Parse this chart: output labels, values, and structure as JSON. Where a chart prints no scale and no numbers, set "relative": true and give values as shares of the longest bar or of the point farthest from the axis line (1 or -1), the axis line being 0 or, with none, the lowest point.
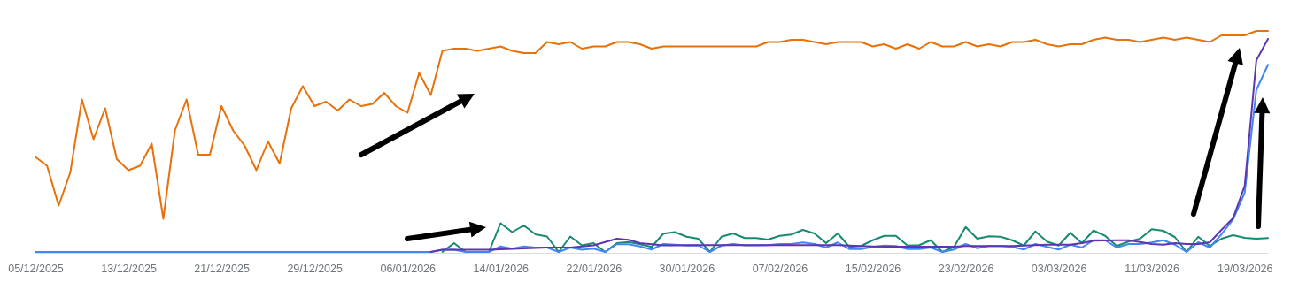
{
  "chart_data": {
    "type": "line",
    "relative": true,
    "grid": false,
    "marker": "none",
    "line_style": "solid",
    "x": [
      "2025-12-05",
      "2025-12-06",
      "2025-12-07",
      "2025-12-08",
      "2025-12-09",
      "2025-12-10",
      "2025-12-11",
      "2025-12-12",
      "2025-12-13",
      "2025-12-14",
      "2025-12-15",
      "2025-12-16",
      "2025-12-17",
      "2025-12-18",
      "2025-12-19",
      "2025-12-20",
      "2025-12-21",
      "2025-12-22",
      "2025-12-23",
      "2025-12-24",
      "2025-12-25",
      "2025-12-26",
      "2025-12-27",
      "2025-12-28",
      "2025-12-29",
      "2025-12-30",
      "2025-12-31",
      "2026-01-01",
      "2026-01-02",
      "2026-01-03",
      "2026-01-04",
      "2026-01-05",
      "2026-01-06",
      "2026-01-07",
      "2026-01-08",
      "2026-01-09",
      "2026-01-10",
      "2026-01-11",
      "2026-01-12",
      "2026-01-13",
      "2026-01-14",
      "2026-01-15",
      "2026-01-16",
      "2026-01-17",
      "2026-01-18",
      "2026-01-19",
      "2026-01-20",
      "2026-01-21",
      "2026-01-22",
      "2026-01-23",
      "2026-01-24",
      "2026-01-25",
      "2026-01-26",
      "2026-01-27",
      "2026-01-28",
      "2026-01-29",
      "2026-01-30",
      "2026-01-31",
      "2026-02-01",
      "2026-02-02",
      "2026-02-03",
      "2026-02-04",
      "2026-02-05",
      "2026-02-06",
      "2026-02-07",
      "2026-02-08",
      "2026-02-09",
      "2026-02-10",
      "2026-02-11",
      "2026-02-12",
      "2026-02-13",
      "2026-02-14",
      "2026-02-15",
      "2026-02-16",
      "2026-02-17",
      "2026-02-18",
      "2026-02-19",
      "2026-02-20",
      "2026-02-21",
      "2026-02-22",
      "2026-02-23",
      "2026-02-24",
      "2026-02-25",
      "2026-02-26",
      "2026-02-27",
      "2026-02-28",
      "2026-03-01",
      "2026-03-02",
      "2026-03-03",
      "2026-03-04",
      "2026-03-05",
      "2026-03-06",
      "2026-03-07",
      "2026-03-08",
      "2026-03-09",
      "2026-03-10",
      "2026-03-11",
      "2026-03-12",
      "2026-03-13",
      "2026-03-14",
      "2026-03-15",
      "2026-03-16",
      "2026-03-17",
      "2026-03-18",
      "2026-03-19",
      "2026-03-20",
      "2026-03-21"
    ],
    "xlim": [
      "2025-12-05",
      "2026-03-21"
    ],
    "xticks": [
      {
        "value": "2025-12-05",
        "label": "05/12/2025"
      },
      {
        "value": "2025-12-13",
        "label": "13/12/2025"
      },
      {
        "value": "2025-12-21",
        "label": "21/12/2025"
      },
      {
        "value": "2025-12-29",
        "label": "29/12/2025"
      },
      {
        "value": "2026-01-06",
        "label": "06/01/2026"
      },
      {
        "value": "2026-01-14",
        "label": "14/01/2026"
      },
      {
        "value": "2026-01-22",
        "label": "22/01/2026"
      },
      {
        "value": "2026-01-30",
        "label": "30/01/2026"
      },
      {
        "value": "2026-02-07",
        "label": "07/02/2026"
      },
      {
        "value": "2026-02-15",
        "label": "15/02/2026"
      },
      {
        "value": "2026-02-23",
        "label": "23/02/2026"
      },
      {
        "value": "2026-03-03",
        "label": "03/03/2026"
      },
      {
        "value": "2026-03-11",
        "label": "11/03/2026"
      },
      {
        "value": "2026-03-19",
        "label": "19/03/2026"
      }
    ],
    "series": [
      {
        "color": "#e8710a",
        "values": [
          0.43,
          0.39,
          0.21,
          0.36,
          0.69,
          0.51,
          0.65,
          0.42,
          0.37,
          0.39,
          0.49,
          0.15,
          0.55,
          0.69,
          0.44,
          0.44,
          0.66,
          0.55,
          0.48,
          0.37,
          0.5,
          0.4,
          0.65,
          0.75,
          0.66,
          0.68,
          0.64,
          0.69,
          0.66,
          0.67,
          0.72,
          0.66,
          0.63,
          0.81,
          0.71,
          0.91,
          0.92,
          0.92,
          0.91,
          0.92,
          0.93,
          0.91,
          0.9,
          0.9,
          0.95,
          0.94,
          0.95,
          0.92,
          0.93,
          0.93,
          0.95,
          0.95,
          0.94,
          0.92,
          0.93,
          0.93,
          0.93,
          0.93,
          0.93,
          0.93,
          0.93,
          0.93,
          0.93,
          0.95,
          0.95,
          0.96,
          0.96,
          0.95,
          0.94,
          0.95,
          0.95,
          0.95,
          0.93,
          0.94,
          0.92,
          0.94,
          0.92,
          0.95,
          0.93,
          0.93,
          0.95,
          0.93,
          0.94,
          0.93,
          0.95,
          0.95,
          0.96,
          0.94,
          0.93,
          0.94,
          0.94,
          0.96,
          0.97,
          0.96,
          0.96,
          0.95,
          0.96,
          0.97,
          0.96,
          0.97,
          0.96,
          0.95,
          0.98,
          0.98,
          0.98,
          1.0,
          1.0
        ]
      },
      {
        "color": "#188a72",
        "values": [
          null,
          null,
          null,
          null,
          null,
          null,
          null,
          null,
          null,
          null,
          null,
          null,
          null,
          null,
          null,
          null,
          null,
          null,
          null,
          null,
          null,
          null,
          null,
          null,
          null,
          null,
          null,
          null,
          null,
          null,
          null,
          null,
          null,
          null,
          null,
          0,
          0.04,
          0,
          0,
          0,
          0.13,
          0.09,
          0.12,
          0.08,
          0.07,
          0,
          0.07,
          0.03,
          0.04,
          0,
          0.04,
          0.045,
          0.035,
          0.023,
          0.083,
          0.09,
          0.069,
          0.06,
          0,
          0.069,
          0.084,
          0.063,
          0.063,
          0.056,
          0.073,
          0.079,
          0.1,
          0.084,
          0.04,
          0.084,
          0.023,
          0.027,
          0.053,
          0.073,
          0.073,
          0.029,
          0.031,
          0.053,
          0,
          0.023,
          0.113,
          0.06,
          0.071,
          0.069,
          0.053,
          0.029,
          0.093,
          0.047,
          0.029,
          0.087,
          0.04,
          0.097,
          0.073,
          0.027,
          0.047,
          0.06,
          0.103,
          0.096,
          0.067,
          0,
          0.069,
          0.027,
          0.06,
          0.076,
          0.064,
          0.06,
          0.063
        ]
      },
      {
        "color": "#4285f4",
        "values": [
          0,
          0,
          0,
          0,
          0,
          0,
          0,
          0,
          0,
          0,
          0,
          0,
          0,
          0,
          0,
          0,
          0,
          0,
          0,
          0,
          0,
          0,
          0,
          0,
          0,
          0,
          0,
          0,
          0,
          0,
          0,
          0,
          0,
          0,
          0,
          0.01,
          0.01,
          0,
          0,
          0,
          0.025,
          0.015,
          0.025,
          0.02,
          0.02,
          0,
          0.02,
          0.01,
          0.015,
          0,
          0.035,
          0.035,
          0.025,
          0.011,
          0.036,
          0.033,
          0.029,
          0.03,
          0,
          0.029,
          0.036,
          0.03,
          0.03,
          0.031,
          0.036,
          0.036,
          0.043,
          0.036,
          0.02,
          0.043,
          0.013,
          0.013,
          0.023,
          0.029,
          0.027,
          0.013,
          0.013,
          0.02,
          0,
          0.011,
          0.036,
          0.017,
          0.027,
          0.027,
          0.023,
          0.011,
          0.036,
          0.023,
          0.011,
          0.033,
          0.02,
          0.053,
          0.053,
          0.02,
          0.036,
          0.036,
          0.043,
          0.053,
          0.033,
          0,
          0.044,
          0.02,
          0.08,
          0.147,
          0.269,
          0.733,
          0.847
        ]
      },
      {
        "color": "#5e35b1",
        "values": [
          null,
          null,
          null,
          null,
          null,
          null,
          null,
          null,
          null,
          null,
          null,
          null,
          null,
          null,
          null,
          null,
          null,
          null,
          null,
          null,
          null,
          null,
          null,
          null,
          null,
          null,
          null,
          null,
          null,
          null,
          null,
          null,
          null,
          null,
          0,
          0.01,
          0.01,
          0.01,
          0.01,
          0.01,
          0.012,
          0.014,
          0.016,
          0.018,
          0.02,
          0.02,
          0.02,
          0.025,
          0.03,
          0.045,
          0.06,
          0.055,
          0.04,
          0.035,
          0.03,
          0.03,
          0.031,
          0.031,
          0.031,
          0.031,
          0.031,
          0.031,
          0.031,
          0.031,
          0.031,
          0.031,
          0.031,
          0.031,
          0.031,
          0.031,
          0.029,
          0.027,
          0.025,
          0.024,
          0.024,
          0.024,
          0.024,
          0.024,
          0.024,
          0.024,
          0.027,
          0.027,
          0.027,
          0.027,
          0.027,
          0.029,
          0.031,
          0.033,
          0.033,
          0.033,
          0.04,
          0.051,
          0.052,
          0.053,
          0.053,
          0.045,
          0.036,
          0.033,
          0.04,
          0.036,
          0.036,
          0.044,
          0.1,
          0.153,
          0.3,
          0.867,
          0.964
        ]
      }
    ]
  }
}
